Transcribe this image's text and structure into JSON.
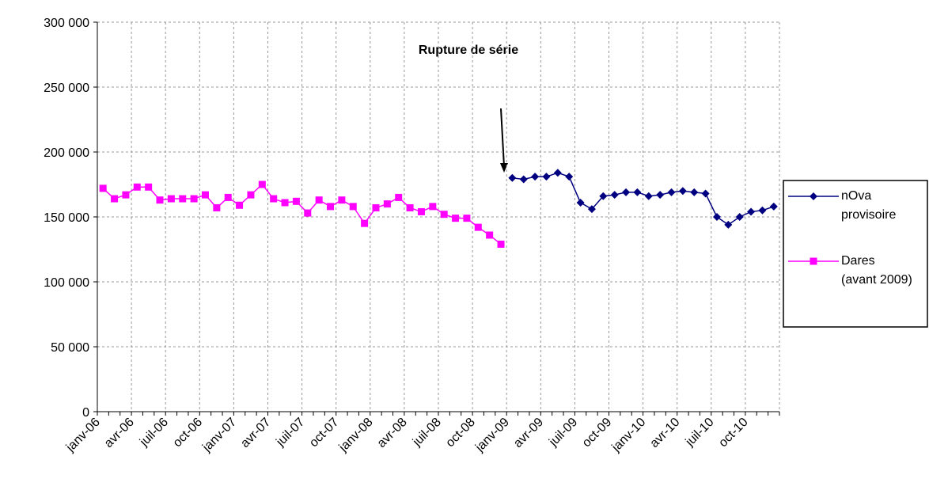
{
  "chart_data": {
    "type": "line",
    "annotation": "Rupture de série",
    "categories": [
      "janv-06",
      null,
      null,
      "avr-06",
      null,
      null,
      "juil-06",
      null,
      null,
      "oct-06",
      null,
      null,
      "janv-07",
      null,
      null,
      "avr-07",
      null,
      null,
      "juil-07",
      null,
      null,
      "oct-07",
      null,
      null,
      "janv-08",
      null,
      null,
      "avr-08",
      null,
      null,
      "juil-08",
      null,
      null,
      "oct-08",
      null,
      null,
      "janv-09",
      null,
      null,
      "avr-09",
      null,
      null,
      "juil-09",
      null,
      null,
      "oct-09",
      null,
      null,
      "janv-10",
      null,
      null,
      "avr-10",
      null,
      null,
      "juil-10",
      null,
      null,
      "oct-10",
      null,
      null
    ],
    "series": [
      {
        "name": "nOva provisoire",
        "color": "#000080",
        "marker": "diamond",
        "values": [
          null,
          null,
          null,
          null,
          null,
          null,
          null,
          null,
          null,
          null,
          null,
          null,
          null,
          null,
          null,
          null,
          null,
          null,
          null,
          null,
          null,
          null,
          null,
          null,
          null,
          null,
          null,
          null,
          null,
          null,
          null,
          null,
          null,
          null,
          null,
          null,
          180,
          179,
          181,
          181,
          184,
          181,
          161,
          156,
          166,
          167,
          169,
          169,
          166,
          167,
          169,
          170,
          169,
          168,
          150,
          144,
          150,
          154,
          155,
          158
        ]
      },
      {
        "name": "Dares (avant 2009)",
        "color": "#ff00ff",
        "marker": "square",
        "values": [
          172,
          164,
          167,
          173,
          173,
          163,
          164,
          164,
          164,
          167,
          157,
          165,
          159,
          167,
          175,
          164,
          161,
          162,
          153,
          163,
          158,
          163,
          158,
          145,
          157,
          160,
          165,
          157,
          154,
          158,
          152,
          149,
          149,
          142,
          136,
          129,
          null,
          null,
          null,
          null,
          null,
          null,
          null,
          null,
          null,
          null,
          null,
          null,
          null,
          null,
          null,
          null,
          null,
          null,
          null,
          null,
          null,
          null,
          null,
          null
        ]
      }
    ],
    "ylim": [
      0,
      300
    ],
    "yticks": [
      0,
      {
        "value": 50,
        "label": "50 000"
      },
      {
        "value": 100,
        "label": "100 000"
      },
      {
        "value": 150,
        "label": "150 000"
      },
      {
        "value": 200,
        "label": "200 000"
      },
      {
        "value": 250,
        "label": "250 000"
      },
      {
        "value": 300,
        "label": "300 000"
      }
    ],
    "grid": true,
    "legend": "right"
  }
}
